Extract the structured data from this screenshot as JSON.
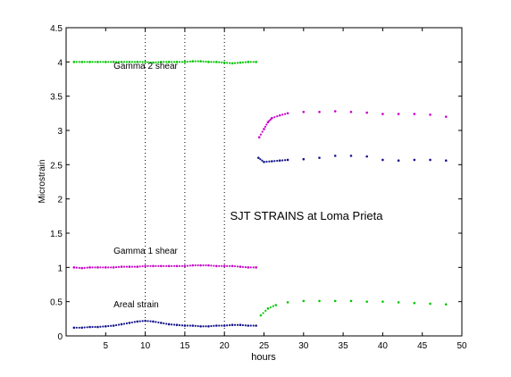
{
  "chart_data": {
    "type": "scatter",
    "title": "SJT STRAINS at Loma Prieta",
    "xlabel": "hours",
    "ylabel": "Microstrain",
    "xlim": [
      0,
      50
    ],
    "ylim": [
      0,
      4.5
    ],
    "xticks": [
      5,
      10,
      15,
      20,
      25,
      30,
      35,
      40,
      45,
      50
    ],
    "yticks": [
      0,
      0.5,
      1,
      1.5,
      2,
      2.5,
      3,
      3.5,
      4,
      4.5
    ],
    "grid": "dotted vertical lines at x = 10, 15, 20",
    "vlines": [
      10,
      15,
      20
    ],
    "annotations": [
      {
        "text": "Gamma 2  shear",
        "x": 6,
        "y": 3.95
      },
      {
        "text": "Gamma 1  shear",
        "x": 6,
        "y": 1.25
      },
      {
        "text": "Areal  strain",
        "x": 6,
        "y": 0.47
      }
    ],
    "series": [
      {
        "color": "#00c800",
        "x": [
          1,
          2,
          3,
          4,
          5,
          6,
          7,
          8,
          9,
          10,
          11,
          12,
          13,
          14,
          15,
          16,
          17,
          18,
          19,
          20,
          21,
          22,
          23,
          24,
          24.6,
          25.5,
          26.5,
          28,
          30,
          32,
          34,
          36,
          38,
          40,
          42,
          44,
          46,
          48
        ],
        "y": [
          4.0,
          4.0,
          4.0,
          4.0,
          4.0,
          4.0,
          4.0,
          4.0,
          4.0,
          4.0,
          3.99,
          4.0,
          4.0,
          4.0,
          4.0,
          4.01,
          4.01,
          4.0,
          4.0,
          3.99,
          3.98,
          3.99,
          4.0,
          4.0,
          0.3,
          0.4,
          0.45,
          0.49,
          0.51,
          0.51,
          0.51,
          0.51,
          0.5,
          0.5,
          0.49,
          0.48,
          0.47,
          0.46
        ]
      },
      {
        "color": "#c800c8",
        "x": [
          1,
          2,
          3,
          4,
          5,
          6,
          7,
          8,
          9,
          10,
          11,
          12,
          13,
          14,
          15,
          16,
          17,
          18,
          19,
          20,
          21,
          22,
          23,
          24,
          24.4,
          25,
          25.5,
          26,
          27,
          28,
          30,
          32,
          34,
          36,
          38,
          40,
          42,
          44,
          46,
          48
        ],
        "y": [
          1.0,
          0.99,
          1.0,
          1.0,
          1.0,
          1.0,
          1.01,
          1.01,
          1.01,
          1.02,
          1.02,
          1.02,
          1.02,
          1.02,
          1.02,
          1.03,
          1.03,
          1.03,
          1.02,
          1.02,
          1.02,
          1.01,
          1.0,
          1.0,
          2.9,
          3.02,
          3.12,
          3.18,
          3.22,
          3.25,
          3.27,
          3.27,
          3.28,
          3.27,
          3.26,
          3.24,
          3.24,
          3.24,
          3.23,
          3.2
        ]
      },
      {
        "color": "#14148c",
        "x": [
          1,
          2,
          3,
          4,
          5,
          6,
          7,
          8,
          9,
          10,
          11,
          12,
          13,
          14,
          15,
          16,
          17,
          18,
          19,
          20,
          21,
          22,
          23,
          24,
          24.3,
          25,
          26,
          27,
          28,
          30,
          32,
          34,
          36,
          38,
          40,
          42,
          44,
          46,
          48
        ],
        "y": [
          0.12,
          0.12,
          0.13,
          0.13,
          0.14,
          0.15,
          0.17,
          0.19,
          0.21,
          0.22,
          0.21,
          0.19,
          0.17,
          0.16,
          0.15,
          0.15,
          0.14,
          0.14,
          0.15,
          0.15,
          0.16,
          0.16,
          0.15,
          0.15,
          2.6,
          2.54,
          2.55,
          2.56,
          2.57,
          2.58,
          2.6,
          2.63,
          2.63,
          2.62,
          2.57,
          2.56,
          2.57,
          2.57,
          2.56
        ]
      }
    ]
  }
}
